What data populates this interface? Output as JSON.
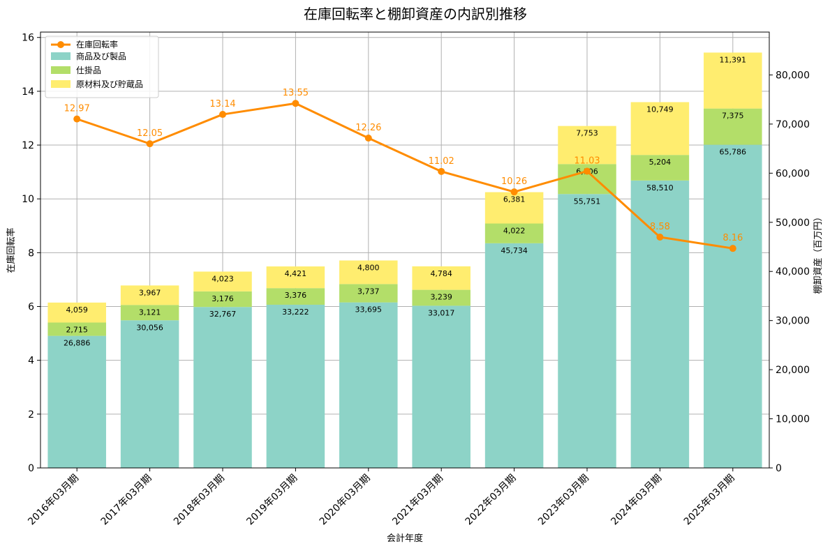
{
  "chart_data": {
    "type": "bar",
    "title": "在庫回転率と棚卸資産の内訳別推移",
    "xlabel": "会計年度",
    "ylabel_left": "在庫回転率",
    "ylabel_right": "棚卸資産（百万円）",
    "categories": [
      "2016年03月期",
      "2017年03月期",
      "2018年03月期",
      "2019年03月期",
      "2020年03月期",
      "2021年03月期",
      "2022年03月期",
      "2023年03月期",
      "2024年03月期",
      "2025年03月期"
    ],
    "stack_series": [
      {
        "name": "商品及び製品",
        "color": "#8dd3c7",
        "values": [
          26886,
          30056,
          32767,
          33222,
          33695,
          33017,
          45734,
          55751,
          58510,
          65786
        ],
        "labels": [
          "26,886",
          "30,056",
          "32,767",
          "33,222",
          "33,695",
          "33,017",
          "45,734",
          "55,751",
          "58,510",
          "65,786"
        ]
      },
      {
        "name": "仕掛品",
        "color": "#b3de69",
        "values": [
          2715,
          3121,
          3176,
          3376,
          3737,
          3239,
          4022,
          6106,
          5204,
          7375
        ],
        "labels": [
          "2,715",
          "3,121",
          "3,176",
          "3,376",
          "3,737",
          "3,239",
          "4,022",
          "6,106",
          "5,204",
          "7,375"
        ]
      },
      {
        "name": "原材料及び貯蔵品",
        "color": "#ffed6f",
        "values": [
          4059,
          3967,
          4023,
          4421,
          4800,
          4784,
          6381,
          7753,
          10749,
          11391
        ],
        "labels": [
          "4,059",
          "3,967",
          "4,023",
          "4,421",
          "4,800",
          "4,784",
          "6,381",
          "7,753",
          "10,749",
          "11,391"
        ]
      }
    ],
    "line_series": {
      "name": "在庫回転率",
      "color": "#ff8c00",
      "values": [
        12.97,
        12.05,
        13.14,
        13.55,
        12.26,
        11.02,
        10.26,
        11.03,
        8.58,
        8.16
      ],
      "labels": [
        "12.97",
        "12.05",
        "13.14",
        "13.55",
        "12.26",
        "11.02",
        "10.26",
        "11.03",
        "8.58",
        "8.16"
      ]
    },
    "ylim_left": [
      0,
      16.2
    ],
    "ylim_right": [
      0,
      88725
    ],
    "yticks_left": [
      0,
      2,
      4,
      6,
      8,
      10,
      12,
      14,
      16
    ],
    "yticks_left_labels": [
      "0",
      "2",
      "4",
      "6",
      "8",
      "10",
      "12",
      "14",
      "16"
    ],
    "yticks_right": [
      0,
      10000,
      20000,
      30000,
      40000,
      50000,
      60000,
      70000,
      80000
    ],
    "yticks_right_labels": [
      "0",
      "10,000",
      "20,000",
      "30,000",
      "40,000",
      "50,000",
      "60,000",
      "70,000",
      "80,000"
    ],
    "grid": true,
    "legend_position": "top-left"
  }
}
